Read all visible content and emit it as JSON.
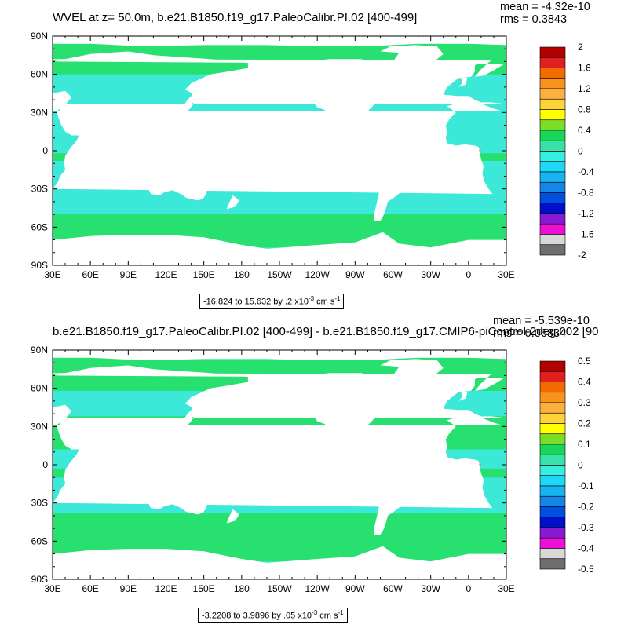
{
  "panels": [
    {
      "title": "WVEL at z=  50.0m, b.e21.B1850.f19_g17.PaleoCalibr.PI.02 [400-499]",
      "mean": "mean = -4.32e-10",
      "rms": "rms = 0.3843",
      "range_note": {
        "prefix": "-16.824 to 15.632 by .2 x10",
        "exp": "-3",
        "unit": " cm s",
        "unit_exp": "-1"
      },
      "colorbar": {
        "labels": [
          "2",
          "1.6",
          "1.2",
          "0.8",
          "0.4",
          "0",
          "-0.4",
          "-0.8",
          "-1.2",
          "-1.6",
          "-2"
        ],
        "colors": [
          "#b30000",
          "#e02020",
          "#f26a00",
          "#f7941e",
          "#fbb040",
          "#fdd23a",
          "#ffff00",
          "#7cdc26",
          "#19d65a",
          "#3ae0a8",
          "#35f0e0",
          "#1ed8f8",
          "#18b4f0",
          "#1486e6",
          "#0050e0",
          "#0010c8",
          "#8a1ad2",
          "#ee10d8",
          "#d8d8d8",
          "#6e6e6e"
        ]
      }
    },
    {
      "title": "b.e21.B1850.f19_g17.PaleoCalibr.PI.02 [400-499] - b.e21.B1850.f19_g17.CMIP6-piControl-2deg.002 [90",
      "mean": "mean = -5.539e-10",
      "rms": "rms = 0.06834",
      "range_note": {
        "prefix": "-3.2208 to 3.9896 by .05 x10",
        "exp": "-3",
        "unit": " cm s",
        "unit_exp": "-1"
      },
      "colorbar": {
        "labels": [
          "0.5",
          "0.4",
          "0.3",
          "0.2",
          "0.1",
          "0",
          "-0.1",
          "-0.2",
          "-0.3",
          "-0.4",
          "-0.5"
        ],
        "colors": [
          "#b30000",
          "#e02020",
          "#f26a00",
          "#f7941e",
          "#fbb040",
          "#fdd23a",
          "#ffff00",
          "#7cdc26",
          "#19d65a",
          "#3ae0a8",
          "#35f0e0",
          "#1ed8f8",
          "#18b4f0",
          "#1486e6",
          "#0050e0",
          "#0010c8",
          "#8a1ad2",
          "#ee10d8",
          "#d8d8d8",
          "#6e6e6e"
        ]
      }
    }
  ],
  "axes": {
    "lat_labels": [
      "90N",
      "60N",
      "30N",
      "0",
      "30S",
      "60S",
      "90S"
    ],
    "lon_labels": [
      "30E",
      "60E",
      "90E",
      "120E",
      "150E",
      "180",
      "150W",
      "120W",
      "90W",
      "60W",
      "30W",
      "0",
      "30E"
    ]
  },
  "map_colors": {
    "ocean": "#3ce8d8",
    "band": "#27e070",
    "land": "#ffffff",
    "equator_core": "#c00000",
    "equator_mid": "#f58a1a",
    "equator_edge": "#fbd838"
  }
}
